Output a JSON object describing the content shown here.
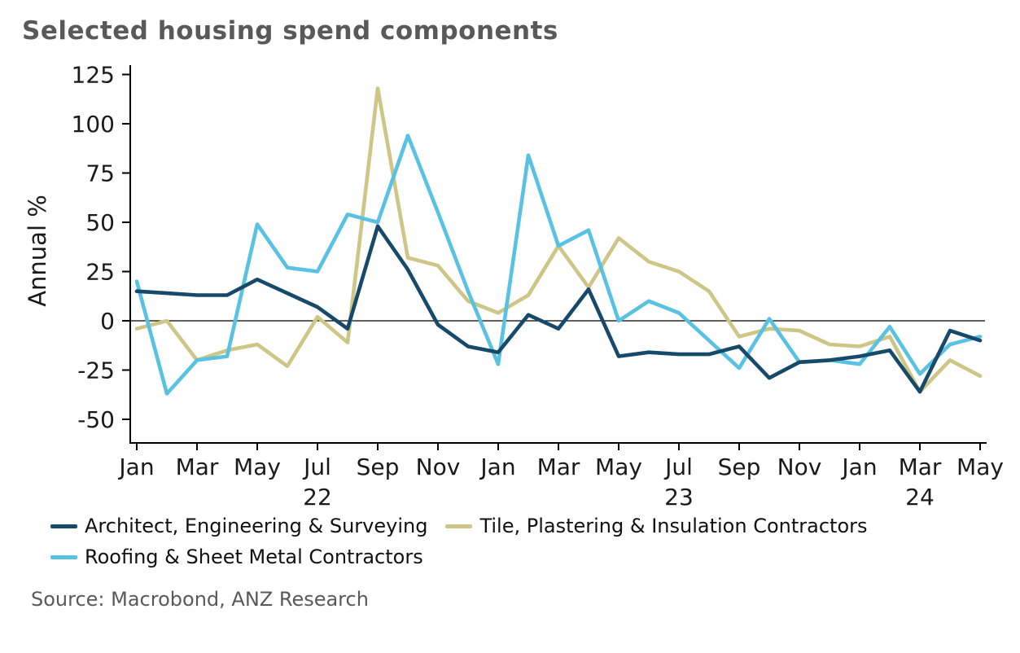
{
  "title": "Selected housing spend components",
  "source": "Source: Macrobond, ANZ Research",
  "chart_data": {
    "type": "line",
    "ylabel": "Annual %",
    "ylim": [
      -50,
      125
    ],
    "y_ticks": [
      125,
      100,
      75,
      50,
      25,
      0,
      -25,
      -50
    ],
    "x_tick_labels": [
      "Jan",
      "Mar",
      "May",
      "Jul",
      "Sep",
      "Nov",
      "Jan",
      "Mar",
      "May",
      "Jul",
      "Sep",
      "Nov",
      "Jan",
      "Mar",
      "May"
    ],
    "year_labels": [
      {
        "text": "22",
        "month_index": 6
      },
      {
        "text": "23",
        "month_index": 18
      },
      {
        "text": "24",
        "month_index": 26
      }
    ],
    "x": [
      "Jan 2022",
      "Feb 2022",
      "Mar 2022",
      "Apr 2022",
      "May 2022",
      "Jun 2022",
      "Jul 2022",
      "Aug 2022",
      "Sep 2022",
      "Oct 2022",
      "Nov 2022",
      "Dec 2022",
      "Jan 2023",
      "Feb 2023",
      "Mar 2023",
      "Apr 2023",
      "May 2023",
      "Jun 2023",
      "Jul 2023",
      "Aug 2023",
      "Sep 2023",
      "Oct 2023",
      "Nov 2023",
      "Dec 2023",
      "Jan 2024",
      "Feb 2024",
      "Mar 2024",
      "Apr 2024",
      "May 2024"
    ],
    "series": [
      {
        "name": "Architect, Engineering & Surveying",
        "color": "#17496B",
        "values": [
          15,
          14,
          13,
          13,
          21,
          14,
          7,
          -4,
          48,
          26,
          -2,
          -13,
          -16,
          3,
          -4,
          16,
          -18,
          -16,
          -17,
          -17,
          -13,
          -29,
          -21,
          -20,
          -18,
          -15,
          -36,
          -5,
          -10
        ]
      },
      {
        "name": "Tile, Plastering & Insulation Contractors",
        "color": "#CEC687",
        "values": [
          -4,
          0,
          -20,
          -15,
          -12,
          -23,
          2,
          -11,
          118,
          32,
          28,
          10,
          4,
          13,
          38,
          17,
          42,
          30,
          25,
          15,
          -8,
          -4,
          -5,
          -12,
          -13,
          -8,
          -36,
          -20,
          -28
        ]
      },
      {
        "name": "Roofing & Sheet Metal Contractors",
        "color": "#59C2E3",
        "values": [
          20,
          -37,
          -20,
          -18,
          49,
          27,
          25,
          54,
          50,
          94,
          55,
          15,
          -22,
          84,
          38,
          46,
          0,
          10,
          4,
          -10,
          -24,
          1,
          -21,
          -20,
          -22,
          -3,
          -27,
          -12,
          -8
        ]
      }
    ],
    "grid": "off",
    "legend_position": "bottom",
    "zero_line": true
  }
}
